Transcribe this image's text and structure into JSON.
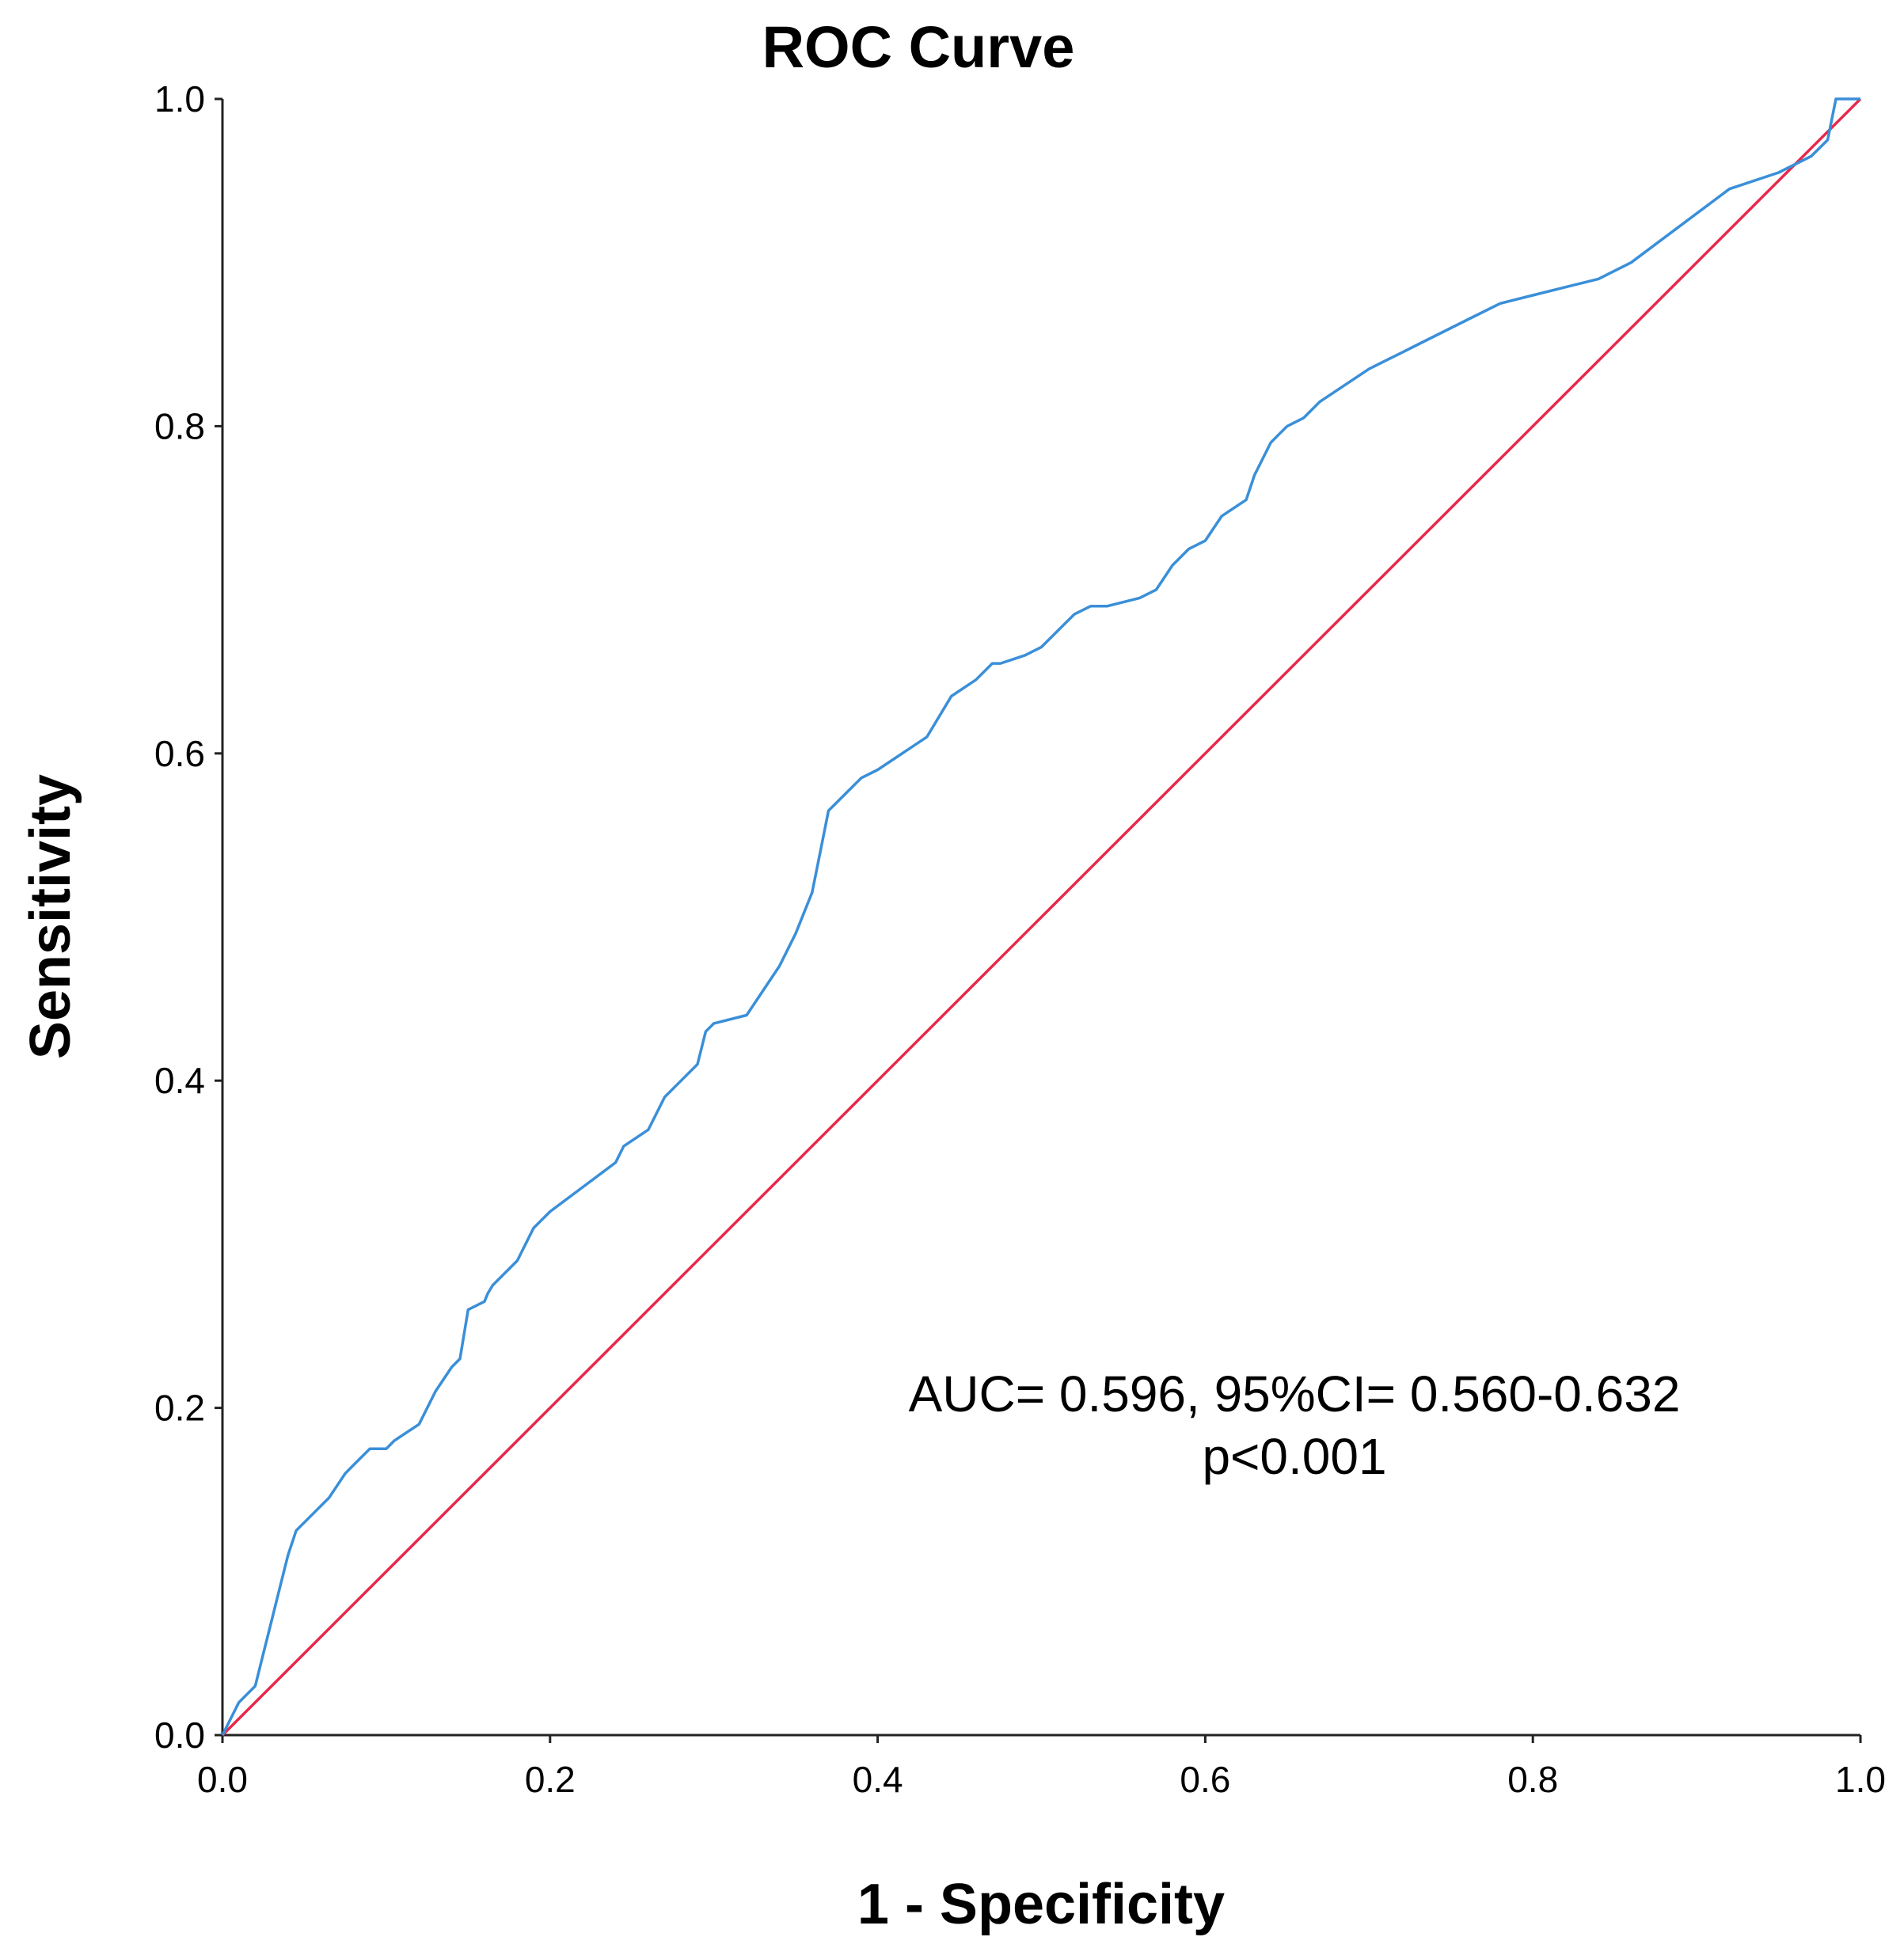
{
  "chart_data": {
    "type": "line",
    "title": "ROC Curve",
    "xlabel": "1 - Specificity",
    "ylabel": "Sensitivity",
    "xlim": [
      0,
      1
    ],
    "ylim": [
      0,
      1
    ],
    "xticks": [
      0.0,
      0.2,
      0.4,
      0.6,
      0.8,
      1.0
    ],
    "yticks": [
      0.0,
      0.2,
      0.4,
      0.6,
      0.8,
      1.0
    ],
    "xtick_labels": [
      "0.0",
      "0.2",
      "0.4",
      "0.6",
      "0.8",
      "1.0"
    ],
    "ytick_labels": [
      "0.0",
      "0.2",
      "0.4",
      "0.6",
      "0.8",
      "1.0"
    ],
    "annotation": {
      "line1": "AUC= 0.596, 95%CI= 0.560-0.632",
      "line2": "p<0.001"
    },
    "series": [
      {
        "name": "ROC curve",
        "color": "#3a8fd8",
        "x": [
          0.0,
          0.01,
          0.02,
          0.025,
          0.03,
          0.035,
          0.04,
          0.045,
          0.05,
          0.06,
          0.065,
          0.075,
          0.08,
          0.09,
          0.1,
          0.105,
          0.12,
          0.13,
          0.14,
          0.145,
          0.15,
          0.16,
          0.162,
          0.165,
          0.18,
          0.19,
          0.2,
          0.22,
          0.24,
          0.245,
          0.26,
          0.27,
          0.28,
          0.29,
          0.295,
          0.3,
          0.32,
          0.33,
          0.34,
          0.35,
          0.36,
          0.365,
          0.37,
          0.38,
          0.39,
          0.4,
          0.43,
          0.445,
          0.46,
          0.47,
          0.475,
          0.49,
          0.5,
          0.51,
          0.52,
          0.53,
          0.54,
          0.56,
          0.57,
          0.58,
          0.59,
          0.6,
          0.61,
          0.625,
          0.63,
          0.64,
          0.645,
          0.65,
          0.66,
          0.67,
          0.7,
          0.71,
          0.72,
          0.73,
          0.76,
          0.78,
          0.8,
          0.82,
          0.84,
          0.86,
          0.88,
          0.9,
          0.92,
          0.95,
          0.97,
          0.98,
          0.985,
          1.0
        ],
        "y": [
          0.0,
          0.02,
          0.03,
          0.05,
          0.07,
          0.09,
          0.11,
          0.125,
          0.13,
          0.14,
          0.145,
          0.16,
          0.165,
          0.175,
          0.175,
          0.18,
          0.19,
          0.21,
          0.225,
          0.23,
          0.26,
          0.265,
          0.27,
          0.275,
          0.29,
          0.31,
          0.32,
          0.335,
          0.35,
          0.36,
          0.37,
          0.39,
          0.4,
          0.41,
          0.43,
          0.435,
          0.44,
          0.455,
          0.47,
          0.49,
          0.515,
          0.54,
          0.565,
          0.575,
          0.585,
          0.59,
          0.61,
          0.635,
          0.645,
          0.655,
          0.655,
          0.66,
          0.665,
          0.675,
          0.685,
          0.69,
          0.69,
          0.695,
          0.7,
          0.715,
          0.725,
          0.73,
          0.745,
          0.755,
          0.77,
          0.79,
          0.795,
          0.8,
          0.805,
          0.815,
          0.835,
          0.84,
          0.845,
          0.85,
          0.865,
          0.875,
          0.88,
          0.885,
          0.89,
          0.9,
          0.915,
          0.93,
          0.945,
          0.955,
          0.965,
          0.975,
          1.0,
          1.0
        ]
      },
      {
        "name": "Reference line",
        "color": "#e8284a",
        "x": [
          0.0,
          1.0
        ],
        "y": [
          0.0,
          1.0
        ]
      }
    ]
  }
}
